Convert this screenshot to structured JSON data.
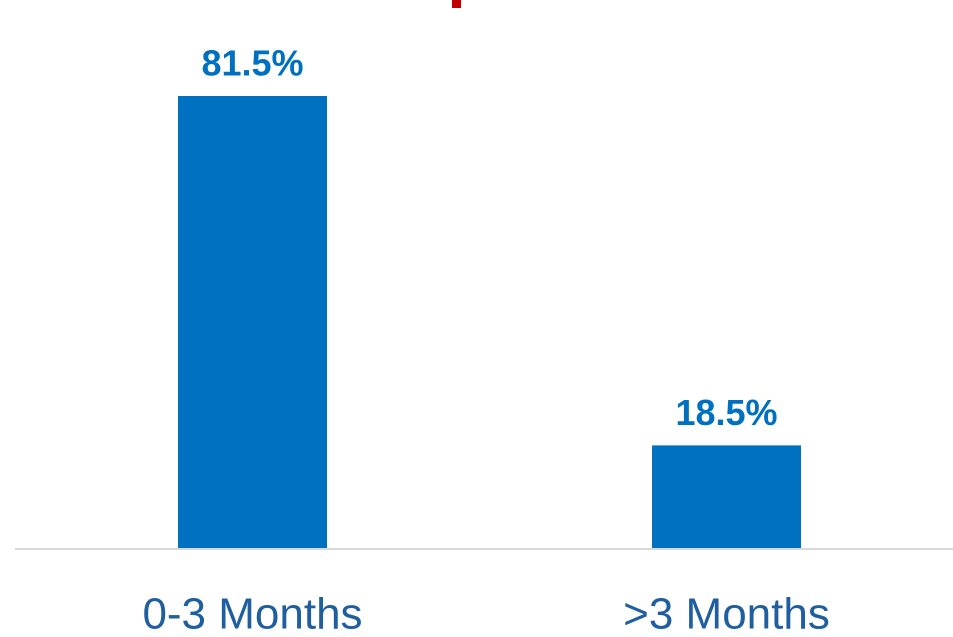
{
  "chart_data": {
    "type": "bar",
    "categories": [
      "0-3 Months",
      ">3 Months"
    ],
    "values": [
      81.5,
      18.5
    ],
    "value_labels": [
      "81.5%",
      "18.5%"
    ],
    "color": "#0070c0"
  }
}
